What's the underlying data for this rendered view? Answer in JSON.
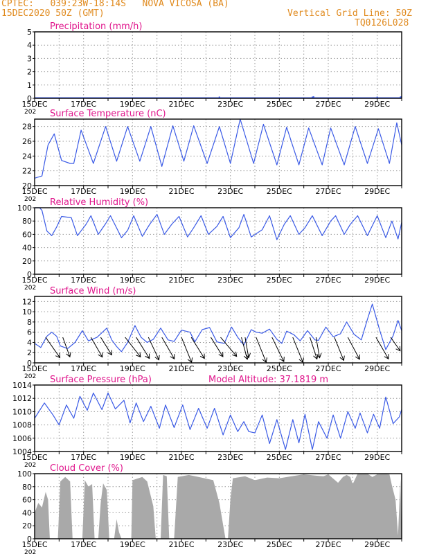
{
  "header": {
    "line1_left": "CPTEC:   039:23W-18:14S   NOVA VICOSA (BA)",
    "line2_left": "15DEC2020 50Z (GMT)",
    "line1_right": "Vertical Grid Line: 50Z",
    "line2_right": "TQ0126L028"
  },
  "colors": {
    "header": "#e08a1e",
    "title": "#e0168c",
    "line": "#3a5ae6",
    "cloud": "#a9a9a9",
    "arrow": "#000000",
    "grid": "#9a9a9a"
  },
  "x_ticks": [
    "15DEC",
    "17DEC",
    "19DEC",
    "21DEC",
    "23DEC",
    "25DEC",
    "27DEC",
    "29DEC"
  ],
  "year_fragment": "202",
  "chart_data": [
    {
      "id": "precip",
      "type": "bar",
      "title": "Precipitation (mm/h)",
      "ylim": [
        0,
        5
      ],
      "yticks": [
        0,
        1,
        2,
        3,
        4,
        5
      ],
      "x_range": [
        0,
        15
      ],
      "grid": true,
      "spikes": [
        [
          7.55,
          0.08
        ],
        [
          11.35,
          0.05
        ],
        [
          11.4,
          0.1
        ],
        [
          14.0,
          0.05
        ],
        [
          14.95,
          0.05
        ],
        [
          14.98,
          0.1
        ]
      ]
    },
    {
      "id": "temp",
      "type": "line",
      "title": "Surface Temperature (nC)",
      "ylim": [
        20,
        29
      ],
      "yticks": [
        20,
        22,
        24,
        26,
        28
      ],
      "x_range": [
        0,
        15
      ],
      "grid": true,
      "points": [
        [
          0,
          21
        ],
        [
          0.3,
          21.3
        ],
        [
          0.55,
          25.5
        ],
        [
          0.8,
          27
        ],
        [
          1.1,
          23.4
        ],
        [
          1.45,
          23
        ],
        [
          1.6,
          23
        ],
        [
          1.9,
          27.5
        ],
        [
          2.4,
          23
        ],
        [
          2.9,
          28
        ],
        [
          3.35,
          23.3
        ],
        [
          3.8,
          28
        ],
        [
          4.3,
          23.3
        ],
        [
          4.75,
          28
        ],
        [
          5.2,
          22.6
        ],
        [
          5.65,
          28.1
        ],
        [
          6.1,
          23.3
        ],
        [
          6.5,
          28.1
        ],
        [
          7.05,
          23
        ],
        [
          7.55,
          28
        ],
        [
          8.0,
          23
        ],
        [
          8.4,
          29
        ],
        [
          8.95,
          23
        ],
        [
          9.35,
          28.3
        ],
        [
          9.9,
          22.8
        ],
        [
          10.3,
          27.9
        ],
        [
          10.8,
          22.8
        ],
        [
          11.2,
          27.8
        ],
        [
          11.75,
          22.8
        ],
        [
          12.1,
          27.8
        ],
        [
          12.65,
          22.8
        ],
        [
          13.1,
          28
        ],
        [
          13.6,
          23
        ],
        [
          14.05,
          27.7
        ],
        [
          14.5,
          23
        ],
        [
          14.8,
          28.5
        ],
        [
          15,
          25.5
        ]
      ]
    },
    {
      "id": "rh",
      "type": "line",
      "title": "Relative Humidity (%)",
      "ylim": [
        0,
        100
      ],
      "yticks": [
        0,
        20,
        40,
        60,
        80,
        100
      ],
      "x_range": [
        0,
        15
      ],
      "grid": true,
      "points": [
        [
          0,
          100
        ],
        [
          0.2,
          100
        ],
        [
          0.3,
          96
        ],
        [
          0.5,
          65
        ],
        [
          0.7,
          58
        ],
        [
          0.9,
          71
        ],
        [
          1.1,
          87
        ],
        [
          1.5,
          85
        ],
        [
          1.75,
          58
        ],
        [
          2.1,
          75
        ],
        [
          2.3,
          88
        ],
        [
          2.6,
          60
        ],
        [
          2.9,
          76
        ],
        [
          3.1,
          88
        ],
        [
          3.55,
          55
        ],
        [
          3.8,
          66
        ],
        [
          4.05,
          88
        ],
        [
          4.4,
          57
        ],
        [
          4.7,
          75
        ],
        [
          5.0,
          90
        ],
        [
          5.3,
          60
        ],
        [
          5.6,
          75
        ],
        [
          5.9,
          87
        ],
        [
          6.25,
          56
        ],
        [
          6.5,
          70
        ],
        [
          6.8,
          88
        ],
        [
          7.1,
          60
        ],
        [
          7.45,
          72
        ],
        [
          7.7,
          87
        ],
        [
          8.0,
          55
        ],
        [
          8.35,
          70
        ],
        [
          8.55,
          90
        ],
        [
          8.85,
          56
        ],
        [
          9.3,
          67
        ],
        [
          9.6,
          88
        ],
        [
          9.9,
          52
        ],
        [
          10.2,
          75
        ],
        [
          10.45,
          88
        ],
        [
          10.8,
          60
        ],
        [
          11.05,
          70
        ],
        [
          11.35,
          88
        ],
        [
          11.75,
          58
        ],
        [
          12.1,
          80
        ],
        [
          12.3,
          88
        ],
        [
          12.65,
          60
        ],
        [
          12.9,
          75
        ],
        [
          13.2,
          88
        ],
        [
          13.6,
          58
        ],
        [
          14.0,
          88
        ],
        [
          14.35,
          55
        ],
        [
          14.6,
          80
        ],
        [
          14.85,
          53
        ],
        [
          15,
          78
        ]
      ]
    },
    {
      "id": "wind",
      "type": "line",
      "title": "Surface Wind (m/s)",
      "ylim": [
        0,
        13
      ],
      "yticks": [
        0,
        2,
        4,
        6,
        8,
        10,
        12
      ],
      "x_range": [
        0,
        15
      ],
      "grid": true,
      "points": [
        [
          0,
          3.8
        ],
        [
          0.25,
          3
        ],
        [
          0.5,
          5.2
        ],
        [
          0.7,
          6
        ],
        [
          0.9,
          5.2
        ],
        [
          1.05,
          3.3
        ],
        [
          1.35,
          2.8
        ],
        [
          1.65,
          4
        ],
        [
          1.95,
          6.3
        ],
        [
          2.2,
          4.3
        ],
        [
          2.55,
          5
        ],
        [
          2.95,
          6.8
        ],
        [
          3.15,
          4.5
        ],
        [
          3.35,
          3.2
        ],
        [
          3.55,
          2.2
        ],
        [
          3.8,
          4
        ],
        [
          4.1,
          7.3
        ],
        [
          4.35,
          5
        ],
        [
          4.6,
          4
        ],
        [
          4.85,
          4.6
        ],
        [
          5.15,
          6.8
        ],
        [
          5.45,
          4.5
        ],
        [
          5.7,
          4.2
        ],
        [
          6.0,
          6.4
        ],
        [
          6.35,
          6
        ],
        [
          6.55,
          4.1
        ],
        [
          6.85,
          6.5
        ],
        [
          7.15,
          6.9
        ],
        [
          7.45,
          4.1
        ],
        [
          7.75,
          3.8
        ],
        [
          8.05,
          7
        ],
        [
          8.3,
          5
        ],
        [
          8.55,
          3.5
        ],
        [
          8.85,
          6.5
        ],
        [
          9.05,
          6
        ],
        [
          9.3,
          5.8
        ],
        [
          9.6,
          6.6
        ],
        [
          9.9,
          4.6
        ],
        [
          10.1,
          3.8
        ],
        [
          10.3,
          6.2
        ],
        [
          10.6,
          5.5
        ],
        [
          10.85,
          4.3
        ],
        [
          11.15,
          6.3
        ],
        [
          11.45,
          4.5
        ],
        [
          11.6,
          4.4
        ],
        [
          11.9,
          7
        ],
        [
          12.2,
          5.1
        ],
        [
          12.5,
          5.7
        ],
        [
          12.75,
          8
        ],
        [
          13.05,
          5.6
        ],
        [
          13.35,
          4.5
        ],
        [
          13.6,
          8.5
        ],
        [
          13.8,
          11.5
        ],
        [
          14.1,
          6.4
        ],
        [
          14.35,
          2.6
        ],
        [
          14.65,
          5.3
        ],
        [
          14.85,
          8.3
        ],
        [
          15,
          6.3
        ]
      ],
      "arrows": [
        [
          0.45,
          -55,
          12
        ],
        [
          1.15,
          -70,
          10
        ],
        [
          2.3,
          -60,
          11
        ],
        [
          2.7,
          -58,
          10
        ],
        [
          3.7,
          -52,
          12
        ],
        [
          4.15,
          -58,
          12
        ],
        [
          4.65,
          -65,
          12
        ],
        [
          5.2,
          -60,
          12
        ],
        [
          6.0,
          -68,
          13
        ],
        [
          6.4,
          -58,
          12
        ],
        [
          7.2,
          -58,
          11
        ],
        [
          7.6,
          -50,
          12
        ],
        [
          8.45,
          -75,
          11
        ],
        [
          8.6,
          -80,
          10
        ],
        [
          9.05,
          -68,
          13
        ],
        [
          9.7,
          -64,
          13
        ],
        [
          10.55,
          -68,
          13
        ],
        [
          11.25,
          -72,
          11
        ],
        [
          11.5,
          -80,
          10
        ],
        [
          12.25,
          -68,
          12
        ],
        [
          12.8,
          -62,
          12
        ],
        [
          13.95,
          -60,
          12
        ],
        [
          14.55,
          -55,
          8
        ]
      ]
    },
    {
      "id": "pres",
      "type": "line",
      "title": "Surface Pressure (hPa)",
      "annotation": "Model Altitude: 37.1819 m",
      "ylim": [
        1004,
        1014
      ],
      "yticks": [
        1004,
        1006,
        1008,
        1010,
        1012,
        1014
      ],
      "x_range": [
        0,
        15
      ],
      "grid": true,
      "points": [
        [
          0,
          1009
        ],
        [
          0.4,
          1011.3
        ],
        [
          0.75,
          1009.5
        ],
        [
          1.0,
          1008
        ],
        [
          1.3,
          1011
        ],
        [
          1.6,
          1009
        ],
        [
          1.85,
          1012.3
        ],
        [
          2.15,
          1010.2
        ],
        [
          2.4,
          1012.8
        ],
        [
          2.75,
          1010.3
        ],
        [
          3.0,
          1012.8
        ],
        [
          3.3,
          1010.4
        ],
        [
          3.65,
          1011.7
        ],
        [
          3.9,
          1008.3
        ],
        [
          4.15,
          1011.3
        ],
        [
          4.45,
          1008.5
        ],
        [
          4.75,
          1010.8
        ],
        [
          5.1,
          1007.5
        ],
        [
          5.35,
          1011
        ],
        [
          5.7,
          1007.6
        ],
        [
          6.05,
          1011
        ],
        [
          6.35,
          1007.3
        ],
        [
          6.7,
          1010.5
        ],
        [
          7.05,
          1007.5
        ],
        [
          7.35,
          1010.5
        ],
        [
          7.7,
          1006.5
        ],
        [
          8.0,
          1009.5
        ],
        [
          8.3,
          1007
        ],
        [
          8.55,
          1008.5
        ],
        [
          8.75,
          1007
        ],
        [
          9.0,
          1006.8
        ],
        [
          9.3,
          1009.5
        ],
        [
          9.6,
          1005.2
        ],
        [
          9.9,
          1008.8
        ],
        [
          10.25,
          1004.3
        ],
        [
          10.55,
          1008.8
        ],
        [
          10.8,
          1005.3
        ],
        [
          11.05,
          1009.6
        ],
        [
          11.35,
          1004.3
        ],
        [
          11.6,
          1008.5
        ],
        [
          11.95,
          1006
        ],
        [
          12.2,
          1009.5
        ],
        [
          12.5,
          1006
        ],
        [
          12.8,
          1010
        ],
        [
          13.1,
          1007.5
        ],
        [
          13.3,
          1009.8
        ],
        [
          13.6,
          1006.8
        ],
        [
          13.85,
          1009.6
        ],
        [
          14.1,
          1007.5
        ],
        [
          14.35,
          1012.2
        ],
        [
          14.65,
          1008.2
        ],
        [
          14.9,
          1009.2
        ],
        [
          15,
          1010.3
        ]
      ]
    },
    {
      "id": "cloud",
      "type": "area",
      "title": "Cloud Cover (%)",
      "ylim": [
        0,
        100
      ],
      "yticks": [
        0,
        20,
        40,
        60,
        80,
        100
      ],
      "x_range": [
        0,
        15
      ],
      "grid": true,
      "points": [
        [
          0,
          40
        ],
        [
          0.15,
          55
        ],
        [
          0.3,
          48
        ],
        [
          0.45,
          72
        ],
        [
          0.55,
          60
        ],
        [
          0.62,
          0
        ],
        [
          0.95,
          0
        ],
        [
          1.05,
          88
        ],
        [
          1.25,
          95
        ],
        [
          1.45,
          88
        ],
        [
          1.55,
          0
        ],
        [
          1.95,
          0
        ],
        [
          2.05,
          90
        ],
        [
          2.2,
          80
        ],
        [
          2.35,
          84
        ],
        [
          2.45,
          0
        ],
        [
          2.6,
          0
        ],
        [
          2.7,
          55
        ],
        [
          2.8,
          85
        ],
        [
          2.95,
          75
        ],
        [
          3.05,
          0
        ],
        [
          3.25,
          0
        ],
        [
          3.35,
          30
        ],
        [
          3.45,
          10
        ],
        [
          3.55,
          0
        ],
        [
          3.95,
          0
        ],
        [
          4.0,
          90
        ],
        [
          4.4,
          95
        ],
        [
          4.6,
          88
        ],
        [
          4.85,
          50
        ],
        [
          4.95,
          0
        ],
        [
          5.15,
          0
        ],
        [
          5.25,
          98
        ],
        [
          5.4,
          96
        ],
        [
          5.5,
          0
        ],
        [
          5.7,
          0
        ],
        [
          5.85,
          95
        ],
        [
          6.3,
          98
        ],
        [
          6.7,
          95
        ],
        [
          7.3,
          90
        ],
        [
          7.55,
          55
        ],
        [
          7.8,
          0
        ],
        [
          7.9,
          0
        ],
        [
          8.0,
          60
        ],
        [
          8.1,
          93
        ],
        [
          8.6,
          96
        ],
        [
          9.0,
          90
        ],
        [
          9.5,
          94
        ],
        [
          10.0,
          93
        ],
        [
          10.5,
          96
        ],
        [
          11.0,
          99
        ],
        [
          11.5,
          97
        ],
        [
          11.8,
          96
        ],
        [
          12.0,
          99
        ],
        [
          12.4,
          86
        ],
        [
          12.6,
          95
        ],
        [
          12.75,
          98
        ],
        [
          12.9,
          95
        ],
        [
          13.0,
          84
        ],
        [
          13.2,
          100
        ],
        [
          13.6,
          100
        ],
        [
          13.8,
          95
        ],
        [
          14.0,
          99
        ],
        [
          14.3,
          100
        ],
        [
          14.5,
          99
        ],
        [
          14.6,
          82
        ],
        [
          14.75,
          60
        ],
        [
          14.85,
          5
        ],
        [
          14.95,
          92
        ],
        [
          15,
          0
        ]
      ]
    }
  ]
}
